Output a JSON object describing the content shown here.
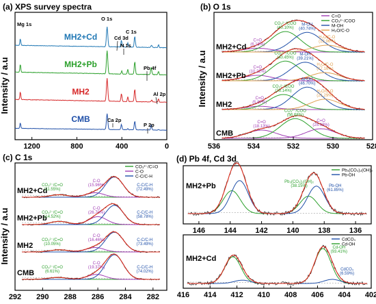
{
  "chart_data": [
    {
      "type": "line",
      "panel": "(a)",
      "title": "XPS survey spectra",
      "xlabel": "",
      "ylabel": "Intensity / a.u",
      "xlim": [
        1350,
        0
      ],
      "xticks": [
        1200,
        800,
        400,
        0
      ],
      "series": [
        {
          "name": "CMB",
          "color": "#1f4fa8",
          "offset": 0,
          "amp": 0.55,
          "baseline": 0.05
        },
        {
          "name": "MH2",
          "color": "#d62728",
          "offset": 1,
          "amp": 0.8,
          "baseline": 0.05
        },
        {
          "name": "MH2+Pb",
          "color": "#2ca02c",
          "offset": 2,
          "amp": 0.8,
          "baseline": 0.1
        },
        {
          "name": "MH2+Cd",
          "color": "#1f77b4",
          "offset": 3,
          "amp": 0.7,
          "baseline": 0.12
        }
      ],
      "peaks": [
        {
          "x": 1303,
          "h": 0.35,
          "w": 4
        },
        {
          "x": 531,
          "h": 1.0,
          "w": 6
        },
        {
          "x": 284.8,
          "h": 0.55,
          "w": 5
        },
        {
          "x": 347,
          "h": 0.22,
          "w": 4
        },
        {
          "x": 400,
          "h": 0.12,
          "w": 4
        },
        {
          "x": 74,
          "h": 0.15,
          "w": 4
        },
        {
          "x": 133,
          "h": 0.08,
          "w": 4
        },
        {
          "x": 405,
          "h": 0.28,
          "w": 4
        },
        {
          "x": 140,
          "h": 0.3,
          "w": 4
        }
      ],
      "annotations": [
        "Mg 1s",
        "O 1s",
        "C 1s",
        "Cd 3d",
        "N 1s",
        "Pb 4f",
        "Al 2p",
        "Ca 2p",
        "P 2p"
      ]
    },
    {
      "type": "line",
      "panel": "(b)",
      "title": "O 1s",
      "xlabel": "",
      "ylabel": "Intensity / a.u",
      "xlim": [
        536,
        528
      ],
      "xticks": [
        536,
        534,
        532,
        530,
        528
      ],
      "legend": [
        "C=O",
        "CO₃²⁻/COO",
        "M-OH",
        "H₂O/C-O"
      ],
      "legend_colors": [
        "#a03cb4",
        "#2ca02c",
        "#1f4fa8",
        "#e0a050"
      ],
      "samples": [
        {
          "name": "MH2+Cd",
          "components": [
            {
              "label": "C=O",
              "pct": "(6.19%)",
              "center": 533.8,
              "amp": 0.14,
              "color": "#a03cb4"
            },
            {
              "label": "CO₃²⁻/COO",
              "pct": "(40.10%)",
              "center": 532.4,
              "amp": 0.75,
              "color": "#2ca02c"
            },
            {
              "label": "M-OH",
              "pct": "(40.74%)",
              "center": 531.3,
              "amp": 0.72,
              "color": "#1f4fa8"
            },
            {
              "label": "H₂O/C-O",
              "pct": "(12.96%)",
              "center": 530.3,
              "amp": 0.25,
              "color": "#e0a050"
            }
          ]
        },
        {
          "name": "MH2+Pb",
          "components": [
            {
              "label": "C=O",
              "pct": "(10.22%)",
              "center": 533.8,
              "amp": 0.2,
              "color": "#a03cb4"
            },
            {
              "label": "CO₃²⁻/COO",
              "pct": "(40.45%)",
              "center": 532.4,
              "amp": 0.72,
              "color": "#2ca02c"
            },
            {
              "label": "M-OH",
              "pct": "(39.21%)",
              "center": 531.4,
              "amp": 0.68,
              "color": "#1f4fa8"
            },
            {
              "label": "H₂O/C-O",
              "pct": "(17.16%)",
              "center": 530.4,
              "amp": 0.3,
              "color": "#e0a050"
            }
          ]
        },
        {
          "name": "MH2",
          "components": [
            {
              "label": "C=O",
              "pct": "(5.87%)",
              "center": 533.7,
              "amp": 0.12,
              "color": "#a03cb4"
            },
            {
              "label": "CO₃²⁻/COO",
              "pct": "(26.14%)",
              "center": 532.5,
              "amp": 0.55,
              "color": "#2ca02c"
            },
            {
              "label": "M-OH",
              "pct": "(46.70%)",
              "center": 531.3,
              "amp": 0.82,
              "color": "#1f4fa8"
            },
            {
              "label": "H₂O/C-O",
              "pct": "(21.29%)",
              "center": 530.4,
              "amp": 0.38,
              "color": "#e0a050"
            }
          ]
        },
        {
          "name": "CMB",
          "components": [
            {
              "label": "C=O",
              "pct": "(18.13%)",
              "center": 533.6,
              "amp": 0.3,
              "color": "#a03cb4"
            },
            {
              "label": "CO₃²⁻/COO",
              "pct": "(56.68%)",
              "center": 531.9,
              "amp": 0.72,
              "color": "#2ca02c"
            },
            {
              "label": "C=O",
              "pct": "(25.19%)",
              "center": 530.6,
              "amp": 0.35,
              "color": "#a03cb4"
            }
          ]
        }
      ]
    },
    {
      "type": "line",
      "panel": "(c)",
      "title": "C 1s",
      "xlabel": "",
      "ylabel": "Intensity / a.u",
      "xlim": [
        292,
        281
      ],
      "xticks": [
        292,
        290,
        288,
        286,
        284,
        282
      ],
      "legend": [
        "CO₃²⁻/C=O",
        "C-O",
        "C-C/C-H"
      ],
      "legend_colors": [
        "#2ca02c",
        "#a03cb4",
        "#1f4fa8"
      ],
      "samples": [
        {
          "name": "MH2+Cd",
          "components": [
            {
              "label": "CO₃²⁻/C=O",
              "pct": "(11.55%)",
              "center": 288.8,
              "amp": 0.1,
              "color": "#2ca02c"
            },
            {
              "label": "C-O",
              "pct": "(15.96%)",
              "center": 286.2,
              "amp": 0.18,
              "color": "#a03cb4"
            },
            {
              "label": "C-C/C-H",
              "pct": "(72.49%)",
              "center": 284.8,
              "amp": 0.82,
              "color": "#1f4fa8"
            }
          ]
        },
        {
          "name": "MH2+Pb",
          "components": [
            {
              "label": "CO₃²⁻/C=O",
              "pct": "(14.52%)",
              "center": 288.8,
              "amp": 0.13,
              "color": "#2ca02c"
            },
            {
              "label": "C-O",
              "pct": "(26.70%)",
              "center": 286.0,
              "amp": 0.32,
              "color": "#a03cb4"
            },
            {
              "label": "C-C/C-H",
              "pct": "(58.78%)",
              "center": 284.8,
              "amp": 0.78,
              "color": "#1f4fa8"
            }
          ]
        },
        {
          "name": "MH2",
          "components": [
            {
              "label": "CO₃²⁻/C=O",
              "pct": "(10.05%)",
              "center": 288.8,
              "amp": 0.09,
              "color": "#2ca02c"
            },
            {
              "label": "C-O",
              "pct": "(16.46%)",
              "center": 286.2,
              "amp": 0.18,
              "color": "#a03cb4"
            },
            {
              "label": "C-C/C-H",
              "pct": "(73.49%)",
              "center": 284.8,
              "amp": 0.8,
              "color": "#1f4fa8"
            }
          ]
        },
        {
          "name": "CMB",
          "components": [
            {
              "label": "CO₃²⁻/C=O",
              "pct": "(6.61%)",
              "center": 288.9,
              "amp": 0.08,
              "color": "#2ca02c"
            },
            {
              "label": "C-O",
              "pct": "(19.37%)",
              "center": 286.1,
              "amp": 0.2,
              "color": "#a03cb4"
            },
            {
              "label": "C-C/C-H",
              "pct": "(74.02%)",
              "center": 284.8,
              "amp": 1.0,
              "color": "#1f4fa8"
            }
          ]
        }
      ]
    },
    {
      "type": "line",
      "panel": "(d)",
      "title": "Pb 4f, Cd 3d",
      "subplots": [
        {
          "name": "MH2+Pb",
          "xlim": [
            147,
            135
          ],
          "xticks": [
            146,
            144,
            142,
            140,
            138,
            136
          ],
          "legend": [
            "Pb₃(CO₃)₂(OH)₂",
            "Pb-OH"
          ],
          "legend_colors": [
            "#2ca02c",
            "#1f4fa8"
          ],
          "components": [
            {
              "label": "Pb₃(CO₃)₂(OH)₂",
              "pct": "(38.15%)",
              "centers": [
                143.9,
                139.0
              ],
              "amps": [
                0.5,
                0.38
              ],
              "color": "#2ca02c"
            },
            {
              "label": "Pb-OH",
              "pct": "(61.85%)",
              "centers": [
                143.4,
                138.5
              ],
              "amps": [
                0.72,
                0.6
              ],
              "color": "#1f4fa8"
            }
          ]
        },
        {
          "name": "MH2+Cd",
          "xlim": [
            416,
            402
          ],
          "xticks": [
            416,
            414,
            412,
            410,
            408,
            406,
            404,
            402
          ],
          "legend": [
            "CdCO₃",
            "Cd-OH"
          ],
          "legend_colors": [
            "#1f4fa8",
            "#2ca02c"
          ],
          "components": [
            {
              "label": "Cd-OH",
              "pct": "(93.41%)",
              "centers": [
                412.3,
                405.6
              ],
              "amps": [
                0.65,
                0.85
              ],
              "color": "#2ca02c"
            },
            {
              "label": "CdCO₃",
              "pct": "(6.59%)",
              "centers": [
                411.6,
                404.9
              ],
              "amps": [
                0.08,
                0.1
              ],
              "color": "#1f4fa8"
            }
          ]
        }
      ]
    }
  ]
}
